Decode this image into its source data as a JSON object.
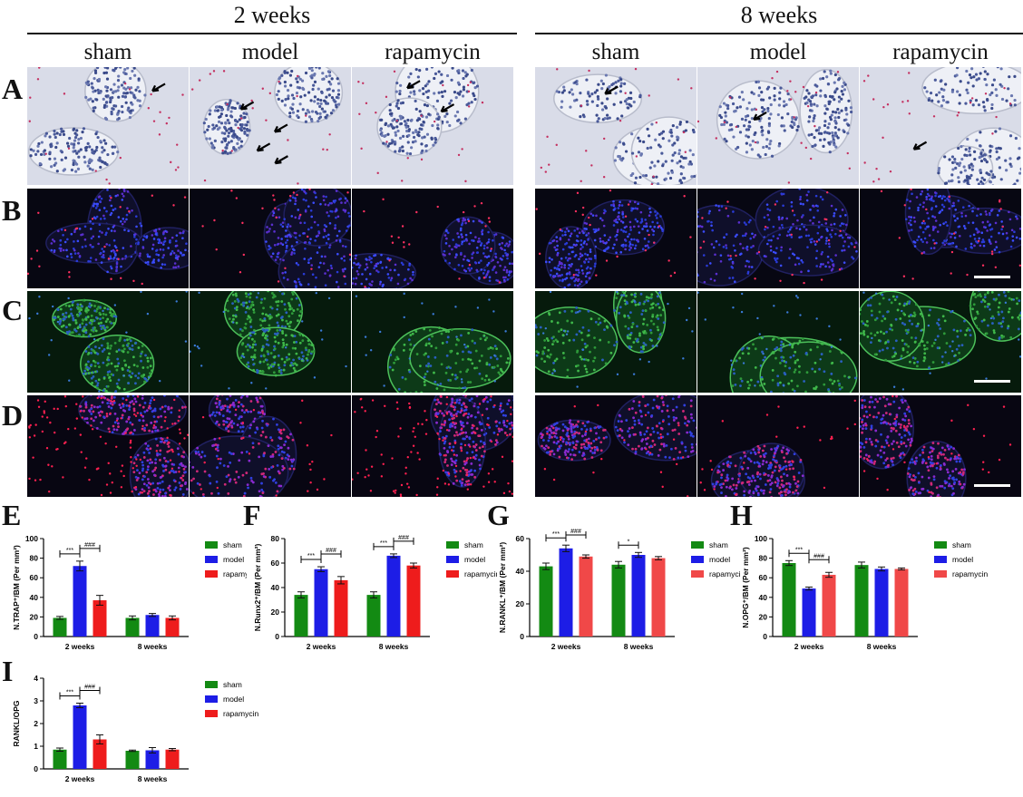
{
  "headers": {
    "left": "2 weeks",
    "right": "8 weeks"
  },
  "columns": [
    "sham",
    "model",
    "rapamycin",
    "sham",
    "model",
    "rapamycin"
  ],
  "rows": [
    "A",
    "B",
    "C",
    "D"
  ],
  "chart_letters": [
    "E",
    "F",
    "G",
    "H",
    "I"
  ],
  "colors": {
    "sham": "#138a13",
    "model": "#1d1de6",
    "rapamycin": "#ee1c1c",
    "rapamycin_light": "#f04848"
  },
  "chart_data": [
    {
      "type": "bar",
      "id": "E",
      "ylabel": "N.TRAP⁺/BM (Per mm²)",
      "categories": [
        "2 weeks",
        "8 weeks"
      ],
      "ylim": [
        0,
        100
      ],
      "yticks": [
        0,
        20,
        40,
        60,
        80,
        100
      ],
      "series": [
        {
          "name": "sham",
          "values": [
            19,
            19
          ],
          "err": [
            1.5,
            2
          ]
        },
        {
          "name": "model",
          "values": [
            72,
            22
          ],
          "err": [
            5,
            1.5
          ]
        },
        {
          "name": "rapamycin",
          "values": [
            37,
            19
          ],
          "err": [
            5,
            2
          ]
        }
      ],
      "sig": [
        {
          "cat": 0,
          "from": 0,
          "to": 1,
          "label": "***"
        },
        {
          "cat": 0,
          "from": 1,
          "to": 2,
          "label": "###"
        }
      ]
    },
    {
      "type": "bar",
      "id": "F",
      "ylabel": "N.Runx2⁺/BM (Per mm²)",
      "categories": [
        "2 weeks",
        "8 weeks"
      ],
      "ylim": [
        0,
        80
      ],
      "yticks": [
        0,
        20,
        40,
        60,
        80
      ],
      "series": [
        {
          "name": "sham",
          "values": [
            34,
            34
          ],
          "err": [
            2.5,
            2.5
          ]
        },
        {
          "name": "model",
          "values": [
            55,
            66
          ],
          "err": [
            2,
            1.5
          ]
        },
        {
          "name": "rapamycin",
          "values": [
            46,
            58
          ],
          "err": [
            3,
            2
          ]
        }
      ],
      "sig": [
        {
          "cat": 0,
          "from": 0,
          "to": 1,
          "label": "***"
        },
        {
          "cat": 0,
          "from": 1,
          "to": 2,
          "label": "###"
        },
        {
          "cat": 1,
          "from": 0,
          "to": 1,
          "label": "***"
        },
        {
          "cat": 1,
          "from": 1,
          "to": 2,
          "label": "###"
        }
      ]
    },
    {
      "type": "bar",
      "id": "G",
      "ylabel": "N.RANKL⁺/BM (Per mm²)",
      "categories": [
        "2 weeks",
        "8 weeks"
      ],
      "ylim": [
        0,
        60
      ],
      "yticks": [
        0,
        20,
        40,
        60
      ],
      "series": [
        {
          "name": "sham",
          "values": [
            43,
            44
          ],
          "err": [
            2,
            2
          ]
        },
        {
          "name": "model",
          "values": [
            54,
            50
          ],
          "err": [
            2,
            1.5
          ]
        },
        {
          "name": "rapamycin",
          "values": [
            49,
            48
          ],
          "err": [
            1,
            1
          ]
        }
      ],
      "sig": [
        {
          "cat": 0,
          "from": 0,
          "to": 1,
          "label": "***"
        },
        {
          "cat": 0,
          "from": 1,
          "to": 2,
          "label": "###"
        },
        {
          "cat": 1,
          "from": 0,
          "to": 1,
          "label": "*"
        }
      ]
    },
    {
      "type": "bar",
      "id": "H",
      "ylabel": "N.OPG⁺/BM (Per mm²)",
      "categories": [
        "2 weeks",
        "8 weeks"
      ],
      "ylim": [
        0,
        100
      ],
      "yticks": [
        0,
        20,
        40,
        60,
        80,
        100
      ],
      "series": [
        {
          "name": "sham",
          "values": [
            75,
            73
          ],
          "err": [
            2.5,
            3
          ]
        },
        {
          "name": "model",
          "values": [
            49,
            69
          ],
          "err": [
            1.5,
            2
          ]
        },
        {
          "name": "rapamycin",
          "values": [
            63,
            69
          ],
          "err": [
            2.5,
            1
          ]
        }
      ],
      "sig": [
        {
          "cat": 0,
          "from": 0,
          "to": 1,
          "label": "***"
        },
        {
          "cat": 0,
          "from": 1,
          "to": 2,
          "label": "###"
        }
      ]
    },
    {
      "type": "bar",
      "id": "I",
      "ylabel": "RANKL/OPG",
      "categories": [
        "2 weeks",
        "8 weeks"
      ],
      "ylim": [
        0,
        4
      ],
      "yticks": [
        0,
        1,
        2,
        3,
        4
      ],
      "series": [
        {
          "name": "sham",
          "values": [
            0.85,
            0.8
          ],
          "err": [
            0.07,
            0.03
          ]
        },
        {
          "name": "model",
          "values": [
            2.8,
            0.82
          ],
          "err": [
            0.1,
            0.12
          ]
        },
        {
          "name": "rapamycin",
          "values": [
            1.3,
            0.85
          ],
          "err": [
            0.2,
            0.05
          ]
        }
      ],
      "sig": [
        {
          "cat": 0,
          "from": 0,
          "to": 1,
          "label": "***"
        },
        {
          "cat": 0,
          "from": 1,
          "to": 2,
          "label": "###"
        }
      ]
    }
  ]
}
